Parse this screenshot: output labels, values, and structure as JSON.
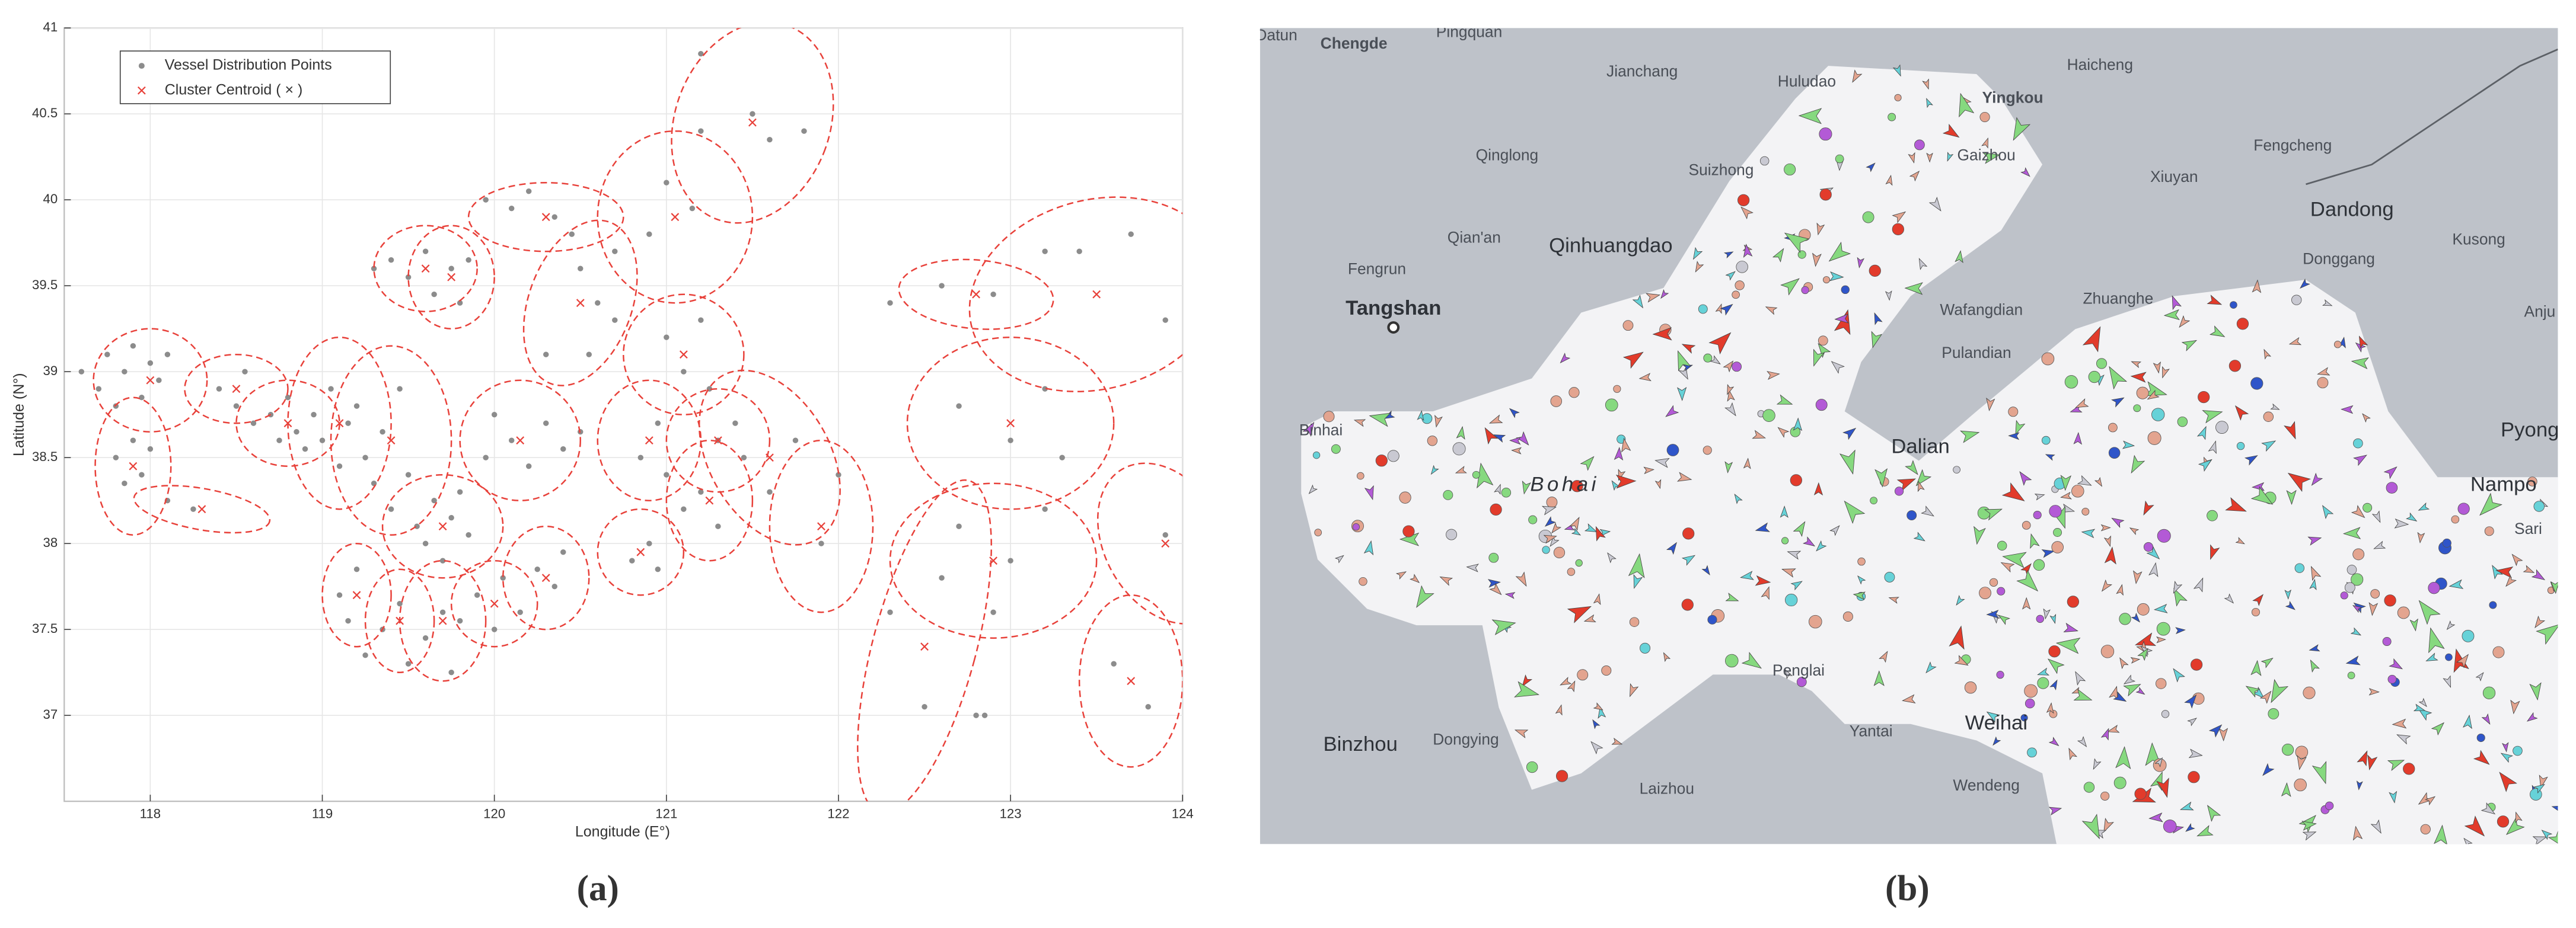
{
  "chart_data": [
    {
      "type": "scatter",
      "xlabel": "Longitude (E°)",
      "ylabel": "Latitude (N°)",
      "panel": "(a)",
      "xlim": [
        117.5,
        124
      ],
      "ylim": [
        36.5,
        41
      ],
      "xticks": [
        118,
        119,
        120,
        121,
        122,
        123,
        124
      ],
      "yticks": [
        37,
        37.5,
        38,
        38.5,
        39,
        39.5,
        40,
        40.5,
        41
      ],
      "grid": true,
      "legend": "upper left",
      "series": [
        {
          "name": "Vessel Distribution Points",
          "color": "#8c8c8c",
          "x": [
            117.6,
            117.7,
            117.75,
            117.8,
            117.85,
            117.9,
            117.95,
            118.0,
            118.05,
            118.1,
            117.8,
            117.85,
            117.9,
            117.95,
            118.0,
            118.1,
            118.25,
            118.4,
            118.5,
            118.55,
            118.6,
            118.7,
            118.75,
            118.8,
            118.85,
            118.9,
            118.95,
            119.0,
            119.05,
            119.1,
            119.15,
            119.2,
            119.25,
            119.3,
            119.35,
            119.4,
            119.45,
            119.5,
            119.55,
            119.6,
            119.65,
            119.7,
            119.75,
            119.8,
            119.85,
            119.3,
            119.4,
            119.5,
            119.6,
            119.65,
            119.75,
            119.8,
            119.85,
            119.1,
            119.15,
            119.2,
            119.25,
            119.35,
            119.45,
            119.5,
            119.6,
            119.7,
            119.75,
            119.8,
            119.9,
            120.0,
            120.05,
            120.15,
            120.25,
            120.35,
            120.4,
            119.95,
            120.0,
            120.1,
            120.2,
            120.3,
            120.4,
            120.5,
            119.95,
            120.1,
            120.2,
            120.35,
            120.45,
            120.5,
            120.6,
            120.7,
            120.55,
            120.8,
            120.9,
            120.95,
            120.85,
            120.95,
            121.0,
            121.1,
            121.2,
            121.3,
            121.3,
            121.4,
            121.45,
            121.0,
            121.1,
            121.2,
            121.25,
            120.9,
            121.0,
            121.15,
            121.2,
            121.2,
            121.5,
            121.6,
            121.8,
            121.6,
            121.75,
            121.9,
            122.0,
            122.3,
            122.5,
            122.6,
            122.7,
            122.9,
            122.85,
            123.0,
            123.2,
            122.3,
            122.6,
            122.9,
            123.0,
            123.2,
            122.7,
            123.3,
            123.4,
            123.7,
            123.2,
            123.9,
            123.6,
            123.8,
            123.9,
            122.8,
            120.7,
            120.3
          ],
          "values": [
            39.0,
            38.9,
            39.1,
            38.8,
            39.0,
            39.15,
            38.85,
            39.05,
            38.95,
            39.1,
            38.5,
            38.35,
            38.6,
            38.4,
            38.55,
            38.25,
            38.2,
            38.9,
            38.8,
            39.0,
            38.7,
            38.75,
            38.6,
            38.85,
            38.65,
            38.55,
            38.75,
            38.6,
            38.9,
            38.45,
            38.7,
            38.8,
            38.5,
            38.35,
            38.65,
            38.2,
            38.9,
            38.4,
            38.1,
            38.0,
            38.25,
            37.9,
            38.15,
            38.3,
            38.05,
            39.6,
            39.65,
            39.55,
            39.7,
            39.45,
            39.6,
            39.4,
            39.65,
            37.7,
            37.55,
            37.85,
            37.35,
            37.5,
            37.65,
            37.3,
            37.45,
            37.6,
            37.25,
            37.55,
            37.7,
            37.5,
            37.8,
            37.6,
            37.85,
            37.75,
            37.95,
            38.5,
            38.75,
            38.6,
            38.45,
            38.7,
            38.55,
            38.65,
            40.0,
            39.95,
            40.05,
            39.9,
            39.8,
            39.6,
            39.4,
            39.3,
            39.1,
            37.9,
            38.0,
            37.85,
            38.5,
            38.7,
            38.4,
            38.2,
            38.3,
            38.1,
            38.6,
            38.7,
            38.5,
            39.2,
            39.0,
            39.3,
            38.9,
            39.8,
            40.1,
            39.95,
            40.4,
            40.85,
            40.5,
            40.35,
            40.4,
            38.3,
            38.6,
            38.0,
            38.4,
            37.6,
            37.05,
            37.8,
            38.1,
            37.6,
            37.0,
            37.9,
            38.2,
            39.4,
            39.5,
            39.45,
            38.6,
            38.9,
            38.8,
            38.5,
            39.7,
            39.8,
            39.7,
            39.3,
            37.3,
            37.05,
            38.05,
            37.0,
            39.7,
            39.1
          ]
        },
        {
          "name": "Cluster Centroid ( × )",
          "color": "#e8413a",
          "x": [
            118.0,
            117.9,
            118.3,
            118.5,
            118.8,
            119.1,
            119.4,
            119.6,
            119.75,
            119.7,
            119.2,
            119.45,
            119.7,
            120.0,
            120.3,
            120.15,
            120.3,
            120.5,
            120.85,
            121.1,
            120.9,
            121.25,
            121.3,
            121.05,
            121.5,
            121.6,
            121.9,
            122.5,
            122.9,
            122.8,
            123.0,
            123.5,
            123.7,
            123.9
          ],
          "values": [
            38.95,
            38.45,
            38.2,
            38.9,
            38.7,
            38.7,
            38.6,
            39.6,
            39.55,
            38.1,
            37.7,
            37.55,
            37.55,
            37.65,
            37.8,
            38.6,
            39.9,
            39.4,
            37.95,
            39.1,
            38.6,
            38.25,
            38.6,
            39.9,
            40.45,
            38.5,
            38.1,
            37.4,
            37.9,
            39.45,
            38.7,
            39.45,
            37.2,
            38.0
          ],
          "rx": [
            0.33,
            0.22,
            0.4,
            0.3,
            0.3,
            0.3,
            0.35,
            0.3,
            0.25,
            0.35,
            0.2,
            0.2,
            0.25,
            0.25,
            0.25,
            0.35,
            0.45,
            0.3,
            0.25,
            0.35,
            0.3,
            0.25,
            0.3,
            0.45,
            0.45,
            0.35,
            0.3,
            0.3,
            0.6,
            0.45,
            0.6,
            0.75,
            0.3,
            0.35
          ],
          "ry": [
            0.3,
            0.4,
            0.12,
            0.2,
            0.25,
            0.5,
            0.55,
            0.25,
            0.3,
            0.3,
            0.3,
            0.3,
            0.35,
            0.25,
            0.3,
            0.35,
            0.2,
            0.5,
            0.25,
            0.35,
            0.35,
            0.35,
            0.3,
            0.5,
            0.6,
            0.55,
            0.5,
            1.0,
            0.45,
            0.2,
            0.5,
            0.55,
            0.5,
            0.5
          ],
          "angle": [
            0,
            0,
            -10,
            0,
            0,
            0,
            0,
            0,
            0,
            0,
            0,
            0,
            0,
            0,
            0,
            0,
            0,
            -20,
            0,
            0,
            0,
            0,
            0,
            0,
            -20,
            30,
            0,
            -15,
            0,
            -5,
            0,
            15,
            0,
            30
          ]
        }
      ]
    },
    {
      "type": "map",
      "panel": "(b)",
      "labels": [
        "Datun",
        "Chengde",
        "Pingquan",
        "Jianchang",
        "Huludao",
        "Yingkou",
        "Haicheng",
        "Gaizhou",
        "Qinglong",
        "Suizhong",
        "Xiuyan",
        "Fengcheng",
        "Dandong",
        "Qian'an",
        "Qinhuangdao",
        "Kusong",
        "Fengrun",
        "Donggang",
        "Zhuanghe",
        "Wafangdian",
        "Tangshan",
        "Anju",
        "Pulandian",
        "Pyong",
        "Binhai",
        "Dalian",
        "Bohai",
        "Nampo",
        "Sari",
        "Penglai",
        "Yantai",
        "Weihai",
        "Binzhou",
        "Dongying",
        "Laizhou",
        "Wendeng"
      ]
    }
  ]
}
